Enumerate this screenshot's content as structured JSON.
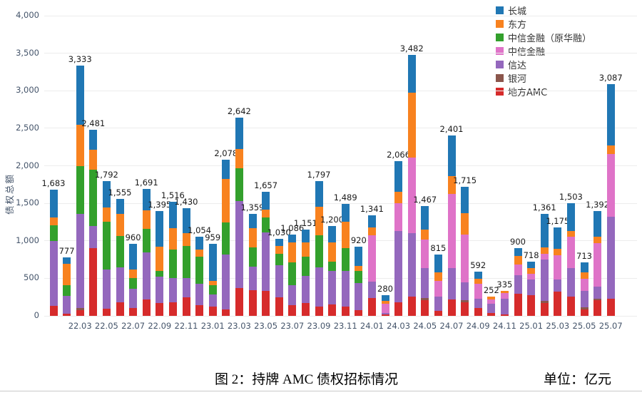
{
  "chart_data": {
    "type": "bar",
    "stacked": true,
    "title": "图 2：持牌 AMC 债权招标情况",
    "unit_note": "单位：亿元",
    "ylabel": "债权总额",
    "ylim": [
      0,
      4000
    ],
    "ytick_step": 500,
    "grid": true,
    "legend_position": "top-right",
    "legend": [
      "长城",
      "东方",
      "中信金融（原华融）",
      "中信金融",
      "信达",
      "银河",
      "地方AMC"
    ],
    "series_colors": {
      "长城": "#2077B4",
      "东方": "#F8821F",
      "中信金融（原华融）": "#33A02C",
      "中信金融": "#DF73C8",
      "信达": "#9468BD",
      "银河": "#8B564C",
      "地方AMC": "#D62B2B"
    },
    "segments_key": [
      "地方AMC",
      "银河",
      "信达",
      "中信金融",
      "中信金融（原华融）",
      "东方",
      "长城"
    ],
    "x_tick_labels": [
      "22.03",
      "22.05",
      "22.07",
      "22.09",
      "22.11",
      "23.01",
      "23.03",
      "23.05",
      "23.07",
      "23.09",
      "23.11",
      "24.01",
      "24.03",
      "24.05",
      "24.07",
      "24.09",
      "24.11",
      "25.01",
      "25.03",
      "25.05",
      "25.07"
    ],
    "bars": [
      {
        "month": "22.01",
        "total": 1683,
        "values": [
          130,
          0,
          865,
          0,
          210,
          105,
          373
        ]
      },
      {
        "month": "22.02",
        "total": 777,
        "values": [
          30,
          0,
          240,
          0,
          140,
          285,
          82
        ]
      },
      {
        "month": "22.03",
        "total": 3333,
        "values": [
          80,
          20,
          1260,
          0,
          635,
          555,
          783
        ]
      },
      {
        "month": "22.04",
        "total": 2481,
        "values": [
          900,
          0,
          300,
          0,
          745,
          270,
          266
        ]
      },
      {
        "month": "22.05",
        "total": 1792,
        "values": [
          95,
          0,
          520,
          0,
          635,
          190,
          352
        ]
      },
      {
        "month": "22.06",
        "total": 1555,
        "values": [
          185,
          0,
          460,
          0,
          415,
          300,
          195
        ]
      },
      {
        "month": "22.07",
        "total": 960,
        "values": [
          105,
          0,
          255,
          0,
          145,
          110,
          345
        ]
      },
      {
        "month": "22.08",
        "total": 1691,
        "values": [
          220,
          0,
          630,
          0,
          305,
          255,
          281
        ]
      },
      {
        "month": "22.09",
        "total": 1395,
        "values": [
          170,
          0,
          350,
          0,
          80,
          325,
          470
        ]
      },
      {
        "month": "22.10",
        "total": 1516,
        "values": [
          185,
          0,
          320,
          0,
          380,
          285,
          346
        ]
      },
      {
        "month": "22.11",
        "total": 1430,
        "values": [
          250,
          0,
          255,
          0,
          425,
          175,
          325
        ]
      },
      {
        "month": "22.12",
        "total": 1054,
        "values": [
          140,
          0,
          285,
          0,
          365,
          95,
          169
        ]
      },
      {
        "month": "23.01",
        "total": 959,
        "values": [
          125,
          0,
          160,
          0,
          125,
          55,
          494
        ]
      },
      {
        "month": "23.02",
        "total": 2078,
        "values": [
          90,
          0,
          730,
          0,
          425,
          575,
          258
        ]
      },
      {
        "month": "23.03",
        "total": 2642,
        "values": [
          375,
          0,
          1150,
          0,
          440,
          255,
          422
        ]
      },
      {
        "month": "23.04",
        "total": 1359,
        "values": [
          345,
          0,
          315,
          0,
          250,
          260,
          189
        ]
      },
      {
        "month": "23.05",
        "total": 1657,
        "values": [
          330,
          0,
          780,
          0,
          200,
          110,
          237
        ]
      },
      {
        "month": "23.06",
        "total": 1030,
        "values": [
          250,
          0,
          420,
          0,
          160,
          100,
          100
        ]
      },
      {
        "month": "23.07",
        "total": 1086,
        "values": [
          140,
          0,
          270,
          0,
          300,
          270,
          106
        ]
      },
      {
        "month": "23.08",
        "total": 1151,
        "values": [
          170,
          0,
          365,
          0,
          255,
          190,
          171
        ]
      },
      {
        "month": "23.09",
        "total": 1797,
        "values": [
          125,
          0,
          520,
          0,
          430,
          380,
          342
        ]
      },
      {
        "month": "23.10",
        "total": 1200,
        "values": [
          155,
          0,
          445,
          0,
          125,
          255,
          220
        ]
      },
      {
        "month": "23.11",
        "total": 1489,
        "values": [
          125,
          0,
          475,
          0,
          300,
          350,
          239
        ]
      },
      {
        "month": "23.12",
        "total": 920,
        "values": [
          75,
          0,
          365,
          0,
          160,
          65,
          255
        ]
      },
      {
        "month": "24.01",
        "total": 1341,
        "values": [
          235,
          0,
          220,
          620,
          0,
          105,
          161
        ]
      },
      {
        "month": "24.02",
        "total": 280,
        "values": [
          15,
          0,
          25,
          120,
          0,
          40,
          80
        ]
      },
      {
        "month": "24.03",
        "total": 2066,
        "values": [
          185,
          0,
          945,
          370,
          0,
          150,
          416
        ]
      },
      {
        "month": "24.04",
        "total": 3482,
        "values": [
          260,
          0,
          840,
          1010,
          0,
          860,
          512
        ]
      },
      {
        "month": "24.05",
        "total": 1467,
        "values": [
          210,
          30,
          400,
          380,
          0,
          130,
          317
        ]
      },
      {
        "month": "24.06",
        "total": 815,
        "values": [
          70,
          0,
          190,
          205,
          0,
          110,
          240
        ]
      },
      {
        "month": "24.07",
        "total": 2401,
        "values": [
          220,
          0,
          420,
          980,
          0,
          240,
          541
        ]
      },
      {
        "month": "24.08",
        "total": 1715,
        "values": [
          180,
          30,
          240,
          630,
          0,
          290,
          345
        ]
      },
      {
        "month": "24.09",
        "total": 592,
        "values": [
          100,
          0,
          125,
          205,
          0,
          65,
          97
        ]
      },
      {
        "month": "24.10",
        "total": 252,
        "values": [
          35,
          0,
          125,
          60,
          0,
          32,
          0
        ]
      },
      {
        "month": "24.11",
        "total": 335,
        "values": [
          20,
          0,
          205,
          75,
          0,
          35,
          0
        ]
      },
      {
        "month": "24.12",
        "total": 900,
        "values": [
          290,
          0,
          255,
          140,
          0,
          110,
          105
        ]
      },
      {
        "month": "25.01",
        "total": 718,
        "values": [
          275,
          0,
          205,
          80,
          0,
          80,
          78
        ]
      },
      {
        "month": "25.02",
        "total": 1361,
        "values": [
          170,
          25,
          555,
          80,
          0,
          80,
          451
        ]
      },
      {
        "month": "25.03",
        "total": 1175,
        "values": [
          320,
          0,
          160,
          330,
          0,
          80,
          285
        ]
      },
      {
        "month": "25.04",
        "total": 1503,
        "values": [
          260,
          0,
          380,
          410,
          0,
          80,
          373
        ]
      },
      {
        "month": "25.05",
        "total": 713,
        "values": [
          85,
          30,
          220,
          160,
          0,
          80,
          138
        ]
      },
      {
        "month": "25.06",
        "total": 1392,
        "values": [
          210,
          20,
          155,
          585,
          0,
          80,
          342
        ]
      },
      {
        "month": "25.07",
        "total": 3087,
        "values": [
          225,
          0,
          1095,
          840,
          0,
          115,
          812
        ]
      }
    ]
  }
}
